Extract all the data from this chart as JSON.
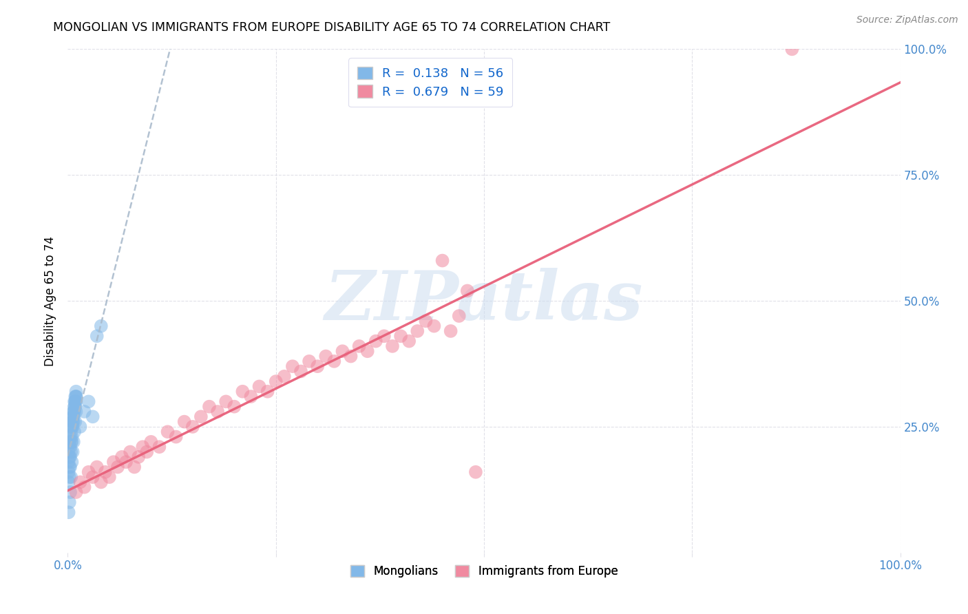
{
  "title": "MONGOLIAN VS IMMIGRANTS FROM EUROPE DISABILITY AGE 65 TO 74 CORRELATION CHART",
  "source": "Source: ZipAtlas.com",
  "ylabel": "Disability Age 65 to 74",
  "xlim": [
    0,
    1.0
  ],
  "ylim": [
    0,
    1.0
  ],
  "xtick_positions": [
    0,
    0.25,
    0.5,
    0.75,
    1.0
  ],
  "xtick_labels": [
    "0.0%",
    "",
    "",
    "",
    "100.0%"
  ],
  "ytick_positions": [
    0.25,
    0.5,
    0.75,
    1.0
  ],
  "ytick_labels": [
    "25.0%",
    "50.0%",
    "75.0%",
    "100.0%"
  ],
  "mongolian_R": 0.138,
  "mongolian_N": 56,
  "europe_R": 0.679,
  "europe_N": 59,
  "mongolian_color": "#82b8e8",
  "europe_color": "#f08aA0",
  "mongolian_line_color": "#5599cc",
  "europe_line_color": "#e8607a",
  "watermark": "ZIPatlas",
  "watermark_color": "#ccddf0",
  "background_color": "#ffffff",
  "mongolian_x": [
    0.001,
    0.002,
    0.003,
    0.004,
    0.005,
    0.006,
    0.007,
    0.008,
    0.009,
    0.01,
    0.001,
    0.002,
    0.003,
    0.004,
    0.005,
    0.006,
    0.007,
    0.008,
    0.009,
    0.01,
    0.001,
    0.002,
    0.003,
    0.004,
    0.005,
    0.006,
    0.007,
    0.008,
    0.009,
    0.01,
    0.001,
    0.002,
    0.003,
    0.004,
    0.005,
    0.006,
    0.007,
    0.008,
    0.009,
    0.01,
    0.001,
    0.002,
    0.003,
    0.004,
    0.005,
    0.006,
    0.007,
    0.008,
    0.009,
    0.01,
    0.015,
    0.02,
    0.025,
    0.03,
    0.035,
    0.04
  ],
  "mongolian_y": [
    0.2,
    0.22,
    0.23,
    0.25,
    0.26,
    0.27,
    0.28,
    0.29,
    0.3,
    0.31,
    0.18,
    0.19,
    0.21,
    0.24,
    0.25,
    0.27,
    0.28,
    0.3,
    0.31,
    0.32,
    0.16,
    0.17,
    0.19,
    0.22,
    0.23,
    0.26,
    0.27,
    0.29,
    0.3,
    0.31,
    0.14,
    0.15,
    0.17,
    0.2,
    0.22,
    0.25,
    0.26,
    0.28,
    0.29,
    0.3,
    0.08,
    0.1,
    0.12,
    0.15,
    0.18,
    0.2,
    0.22,
    0.24,
    0.26,
    0.28,
    0.25,
    0.28,
    0.3,
    0.27,
    0.43,
    0.45
  ],
  "europe_x": [
    0.01,
    0.015,
    0.02,
    0.025,
    0.03,
    0.035,
    0.04,
    0.045,
    0.05,
    0.055,
    0.06,
    0.065,
    0.07,
    0.075,
    0.08,
    0.085,
    0.09,
    0.095,
    0.1,
    0.11,
    0.12,
    0.13,
    0.14,
    0.15,
    0.16,
    0.17,
    0.18,
    0.19,
    0.2,
    0.21,
    0.22,
    0.23,
    0.24,
    0.25,
    0.26,
    0.27,
    0.28,
    0.29,
    0.3,
    0.31,
    0.32,
    0.33,
    0.34,
    0.35,
    0.36,
    0.37,
    0.38,
    0.39,
    0.4,
    0.41,
    0.42,
    0.43,
    0.44,
    0.45,
    0.46,
    0.47,
    0.48,
    0.87,
    0.49
  ],
  "europe_y": [
    0.12,
    0.14,
    0.13,
    0.16,
    0.15,
    0.17,
    0.14,
    0.16,
    0.15,
    0.18,
    0.17,
    0.19,
    0.18,
    0.2,
    0.17,
    0.19,
    0.21,
    0.2,
    0.22,
    0.21,
    0.24,
    0.23,
    0.26,
    0.25,
    0.27,
    0.29,
    0.28,
    0.3,
    0.29,
    0.32,
    0.31,
    0.33,
    0.32,
    0.34,
    0.35,
    0.37,
    0.36,
    0.38,
    0.37,
    0.39,
    0.38,
    0.4,
    0.39,
    0.41,
    0.4,
    0.42,
    0.43,
    0.41,
    0.43,
    0.42,
    0.44,
    0.46,
    0.45,
    0.58,
    0.44,
    0.47,
    0.52,
    1.0,
    0.16
  ],
  "grid_color": "#e0e0e8",
  "tick_color": "#4488cc",
  "legend_R_color": "#1166cc"
}
